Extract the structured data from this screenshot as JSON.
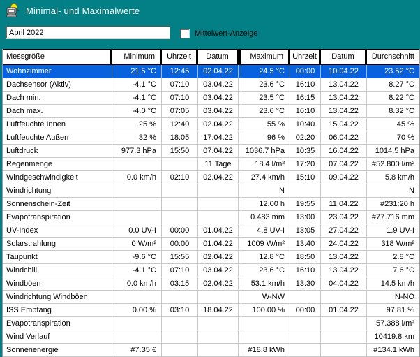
{
  "window": {
    "title": "Minimal- und Maximalwerte"
  },
  "toolbar": {
    "period_value": "April 2022",
    "mittelwert_label": "Mittelwert-Anzeige",
    "mittelwert_checked": false
  },
  "colors": {
    "titlebar_teal": "#038086",
    "selection_blue": "#0862de",
    "grid_line": "#c8c8c8",
    "header_separator": "#000000"
  },
  "icons": {
    "app_icon": "weather-station-icon"
  },
  "table": {
    "columns": [
      "Messgröße",
      "Minimum",
      "Uhrzeit",
      "Datum",
      "Maximum",
      "Uhrzeit",
      "Datum",
      "Durchschnitt"
    ],
    "column_alignments": [
      "left",
      "right",
      "center",
      "center",
      "right",
      "center",
      "center",
      "right"
    ],
    "selected_row_index": 0,
    "rows": [
      [
        "Wohnzimmer",
        "21.5 °C",
        "12:45",
        "02.04.22",
        "24.5 °C",
        "00:00",
        "10.04.22",
        "23.52 °C"
      ],
      [
        "Dachsensor (Aktiv)",
        "-4.1 °C",
        "07:10",
        "03.04.22",
        "23.6 °C",
        "16:10",
        "13.04.22",
        "8.27 °C"
      ],
      [
        "Dach min.",
        "-4.1 °C",
        "07:10",
        "03.04.22",
        "23.5 °C",
        "16:15",
        "13.04.22",
        "8.22 °C"
      ],
      [
        "Dach max.",
        "-4.0 °C",
        "07:05",
        "03.04.22",
        "23.6 °C",
        "16:10",
        "13.04.22",
        "8.32 °C"
      ],
      [
        "Luftfeuchte Innen",
        "25 %",
        "12:40",
        "02.04.22",
        "55 %",
        "10:40",
        "15.04.22",
        "45 %"
      ],
      [
        "Luftfeuchte Außen",
        "32 %",
        "18:05",
        "17.04.22",
        "96 %",
        "02:20",
        "06.04.22",
        "70 %"
      ],
      [
        "Luftdruck",
        "977.3 hPa",
        "15:50",
        "07.04.22",
        "1036.7 hPa",
        "10:35",
        "16.04.22",
        "1014.5 hPa"
      ],
      [
        "Regenmenge",
        "",
        "",
        "11 Tage",
        "18.4 l/m²",
        "17:20",
        "07.04.22",
        "#52.800 l/m²"
      ],
      [
        "Windgeschwindigkeit",
        "0.0 km/h",
        "02:10",
        "02.04.22",
        "27.4 km/h",
        "15:10",
        "09.04.22",
        "5.8 km/h"
      ],
      [
        "Windrichtung",
        "",
        "",
        "",
        "N",
        "",
        "",
        "N"
      ],
      [
        "Sonnenschein-Zeit",
        "",
        "",
        "",
        "12.00 h",
        "19:55",
        "11.04.22",
        "#231:20 h"
      ],
      [
        "Evapotranspiration",
        "",
        "",
        "",
        "0.483 mm",
        "13:00",
        "23.04.22",
        "#77.716 mm"
      ],
      [
        "UV-Index",
        "0.0 UV-I",
        "00:00",
        "01.04.22",
        "4.8 UV-I",
        "13:05",
        "27.04.22",
        "1.9 UV-I"
      ],
      [
        "Solarstrahlung",
        "0 W/m²",
        "00:00",
        "01.04.22",
        "1009 W/m²",
        "13:40",
        "24.04.22",
        "318 W/m²"
      ],
      [
        "Taupunkt",
        "-9.6 °C",
        "15:55",
        "02.04.22",
        "12.8 °C",
        "18:50",
        "13.04.22",
        "2.8 °C"
      ],
      [
        "Windchill",
        "-4.1 °C",
        "07:10",
        "03.04.22",
        "23.6 °C",
        "16:10",
        "13.04.22",
        "7.6 °C"
      ],
      [
        "Windböen",
        "0.0 km/h",
        "03:15",
        "02.04.22",
        "53.1 km/h",
        "13:30",
        "04.04.22",
        "14.5 km/h"
      ],
      [
        "Windrichtung Windböen",
        "",
        "",
        "",
        "W-NW",
        "",
        "",
        "N-NO"
      ],
      [
        "ISS Empfang",
        "0.00 %",
        "03:10",
        "18.04.22",
        "100.00 %",
        "00:00",
        "01.04.22",
        "97.81 %"
      ],
      [
        "Evapotranspiration",
        "",
        "",
        "",
        "",
        "",
        "",
        "57.388 l/m²"
      ],
      [
        "Wind Verlauf",
        "",
        "",
        "",
        "",
        "",
        "",
        "10419.8 km"
      ],
      [
        "Sonnenenergie",
        "#7.35 €",
        "",
        "",
        "#18.8 kWh",
        "",
        "",
        "#134.1 kWh"
      ]
    ]
  }
}
